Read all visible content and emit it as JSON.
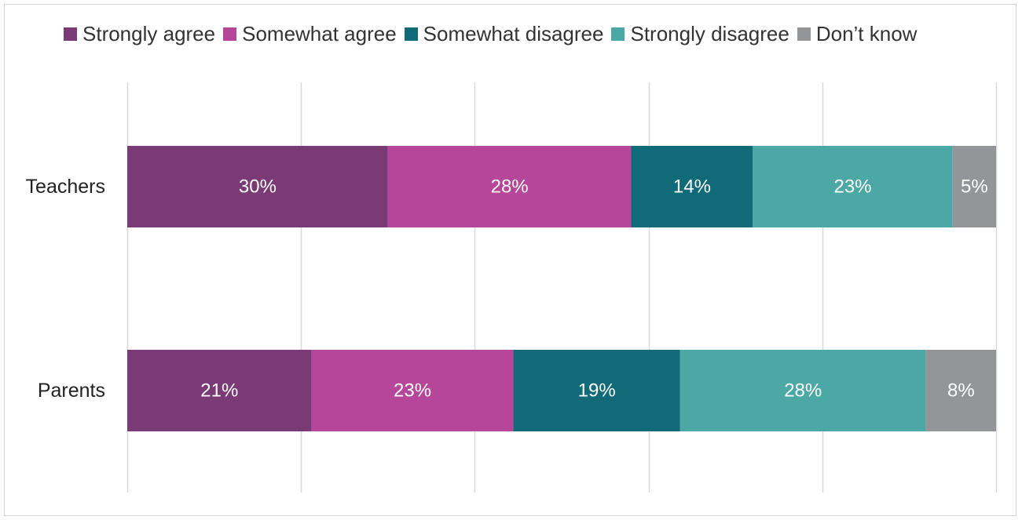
{
  "chart_data": {
    "type": "bar",
    "orientation": "horizontal",
    "stacked": true,
    "categories": [
      "Teachers",
      "Parents"
    ],
    "xlim": [
      0,
      100
    ],
    "grid": true,
    "legend_position": "top",
    "series": [
      {
        "name": "Strongly agree",
        "color": "#793a76",
        "values": [
          30,
          21
        ],
        "labels": [
          "30%",
          "21%"
        ]
      },
      {
        "name": "Somewhat agree",
        "color": "#b64699",
        "values": [
          28,
          23
        ],
        "labels": [
          "28%",
          "23%"
        ]
      },
      {
        "name": "Somewhat disagree",
        "color": "#106a78",
        "values": [
          14,
          19
        ],
        "labels": [
          "14%",
          "19%"
        ]
      },
      {
        "name": "Strongly disagree",
        "color": "#4ba8a5",
        "values": [
          23,
          28
        ],
        "labels": [
          "23%",
          "28%"
        ]
      },
      {
        "name": "Don’t know",
        "color": "#939598",
        "values": [
          5,
          8
        ],
        "labels": [
          "5%",
          "8%"
        ]
      }
    ]
  }
}
